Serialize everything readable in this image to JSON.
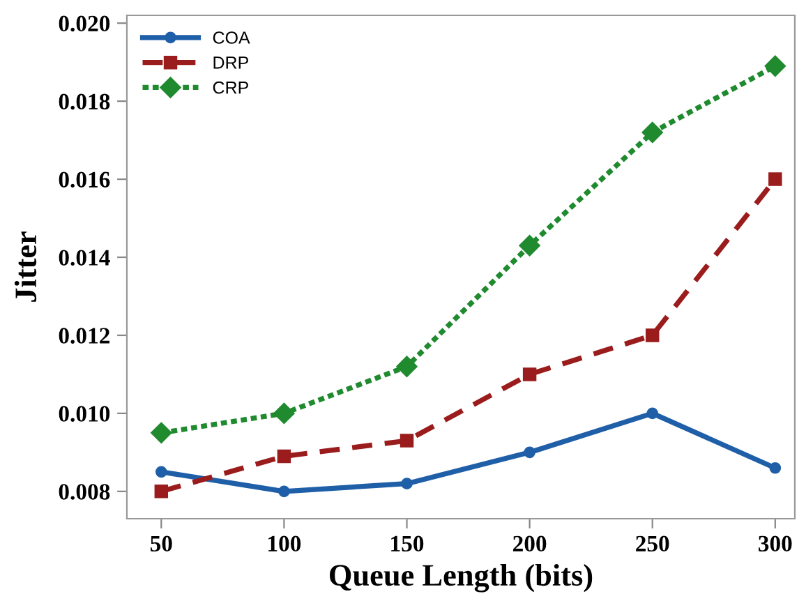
{
  "chart_data": {
    "type": "line",
    "xlabel": "Queue Length (bits)",
    "ylabel": "Jitter",
    "x": [
      50,
      100,
      150,
      200,
      250,
      300
    ],
    "series": [
      {
        "name": "COA",
        "color": "#1f5fa8",
        "values": [
          0.0085,
          0.008,
          0.0082,
          0.009,
          0.01,
          0.0086
        ],
        "marker": "circle",
        "line_style": "solid"
      },
      {
        "name": "DRP",
        "color": "#9b1c1c",
        "values": [
          0.008,
          0.0089,
          0.0093,
          0.011,
          0.012,
          0.016
        ],
        "marker": "square",
        "line_style": "dashed"
      },
      {
        "name": "CRP",
        "color": "#1f8a2e",
        "values": [
          0.0095,
          0.01,
          0.0112,
          0.0143,
          0.0172,
          0.0189
        ],
        "marker": "diamond",
        "line_style": "dotted"
      }
    ],
    "xlim": [
      36,
      308
    ],
    "ylim": [
      0.0073,
      0.0202
    ],
    "xticks": [
      50,
      100,
      150,
      200,
      250,
      300
    ],
    "yticks": [
      {
        "value": 0.008,
        "label": "0.008"
      },
      {
        "value": 0.01,
        "label": "0.010"
      },
      {
        "value": 0.012,
        "label": "0.012"
      },
      {
        "value": 0.014,
        "label": "0.014"
      },
      {
        "value": 0.016,
        "label": "0.016"
      },
      {
        "value": 0.018,
        "label": "0.018"
      },
      {
        "value": 0.02,
        "label": "0.020"
      }
    ],
    "grid": false,
    "legend": "top left"
  }
}
